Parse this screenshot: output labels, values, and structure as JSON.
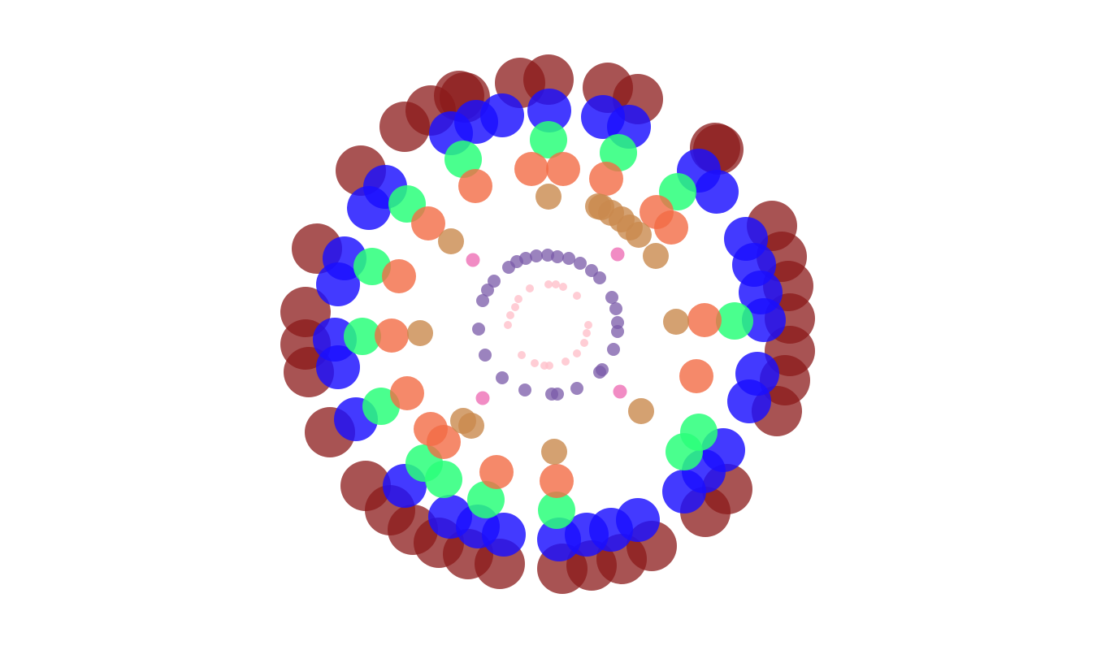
{
  "figure": {
    "kind": "radial bubble plot",
    "background": "#ffffff"
  },
  "palette": {
    "ring_outer": "#8b1a1a",
    "ring_blue": "#1a0fff",
    "ring_green": "#2aff7a",
    "ring_orange": "#f26b45",
    "ring_tan": "#c98a4e",
    "ring_magenta": "#ee6fb5",
    "ring_purple": "#7a5aa8",
    "ring_pink": "#ffc0cb"
  }
}
